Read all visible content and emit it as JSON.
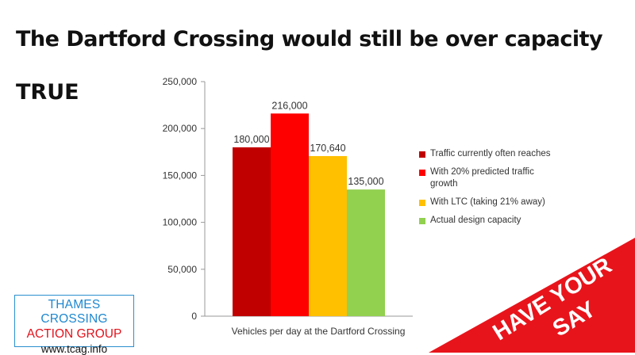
{
  "headline": "The Dartford Crossing would still be over capacity",
  "verdict": "TRUE",
  "chart_data": {
    "type": "bar",
    "title": "",
    "xlabel": "Vehicles per day at the Dartford Crossing",
    "ylabel": "",
    "ylim": [
      0,
      250000
    ],
    "yticks": [
      "0",
      "50,000",
      "100,000",
      "150,000",
      "200,000",
      "250,000"
    ],
    "grid": false,
    "legend_position": "right",
    "series": [
      {
        "name": "Traffic currently often reaches",
        "value": 180000,
        "label": "180,000",
        "color": "#c00000"
      },
      {
        "name": "With 20% predicted traffic growth",
        "value": 216000,
        "label": "216,000",
        "color": "#ff0000"
      },
      {
        "name": "With LTC (taking 21% away)",
        "value": 170640,
        "label": "170,640",
        "color": "#ffc000"
      },
      {
        "name": "Actual design capacity",
        "value": 135000,
        "label": "135,000",
        "color": "#92d050"
      }
    ]
  },
  "logo": {
    "line1": "THAMES CROSSING",
    "line2": "ACTION GROUP",
    "line3": "www.tcag.info"
  },
  "banner": {
    "line1": "HAVE YOUR",
    "line2": "SAY",
    "color": "#e8141b"
  }
}
